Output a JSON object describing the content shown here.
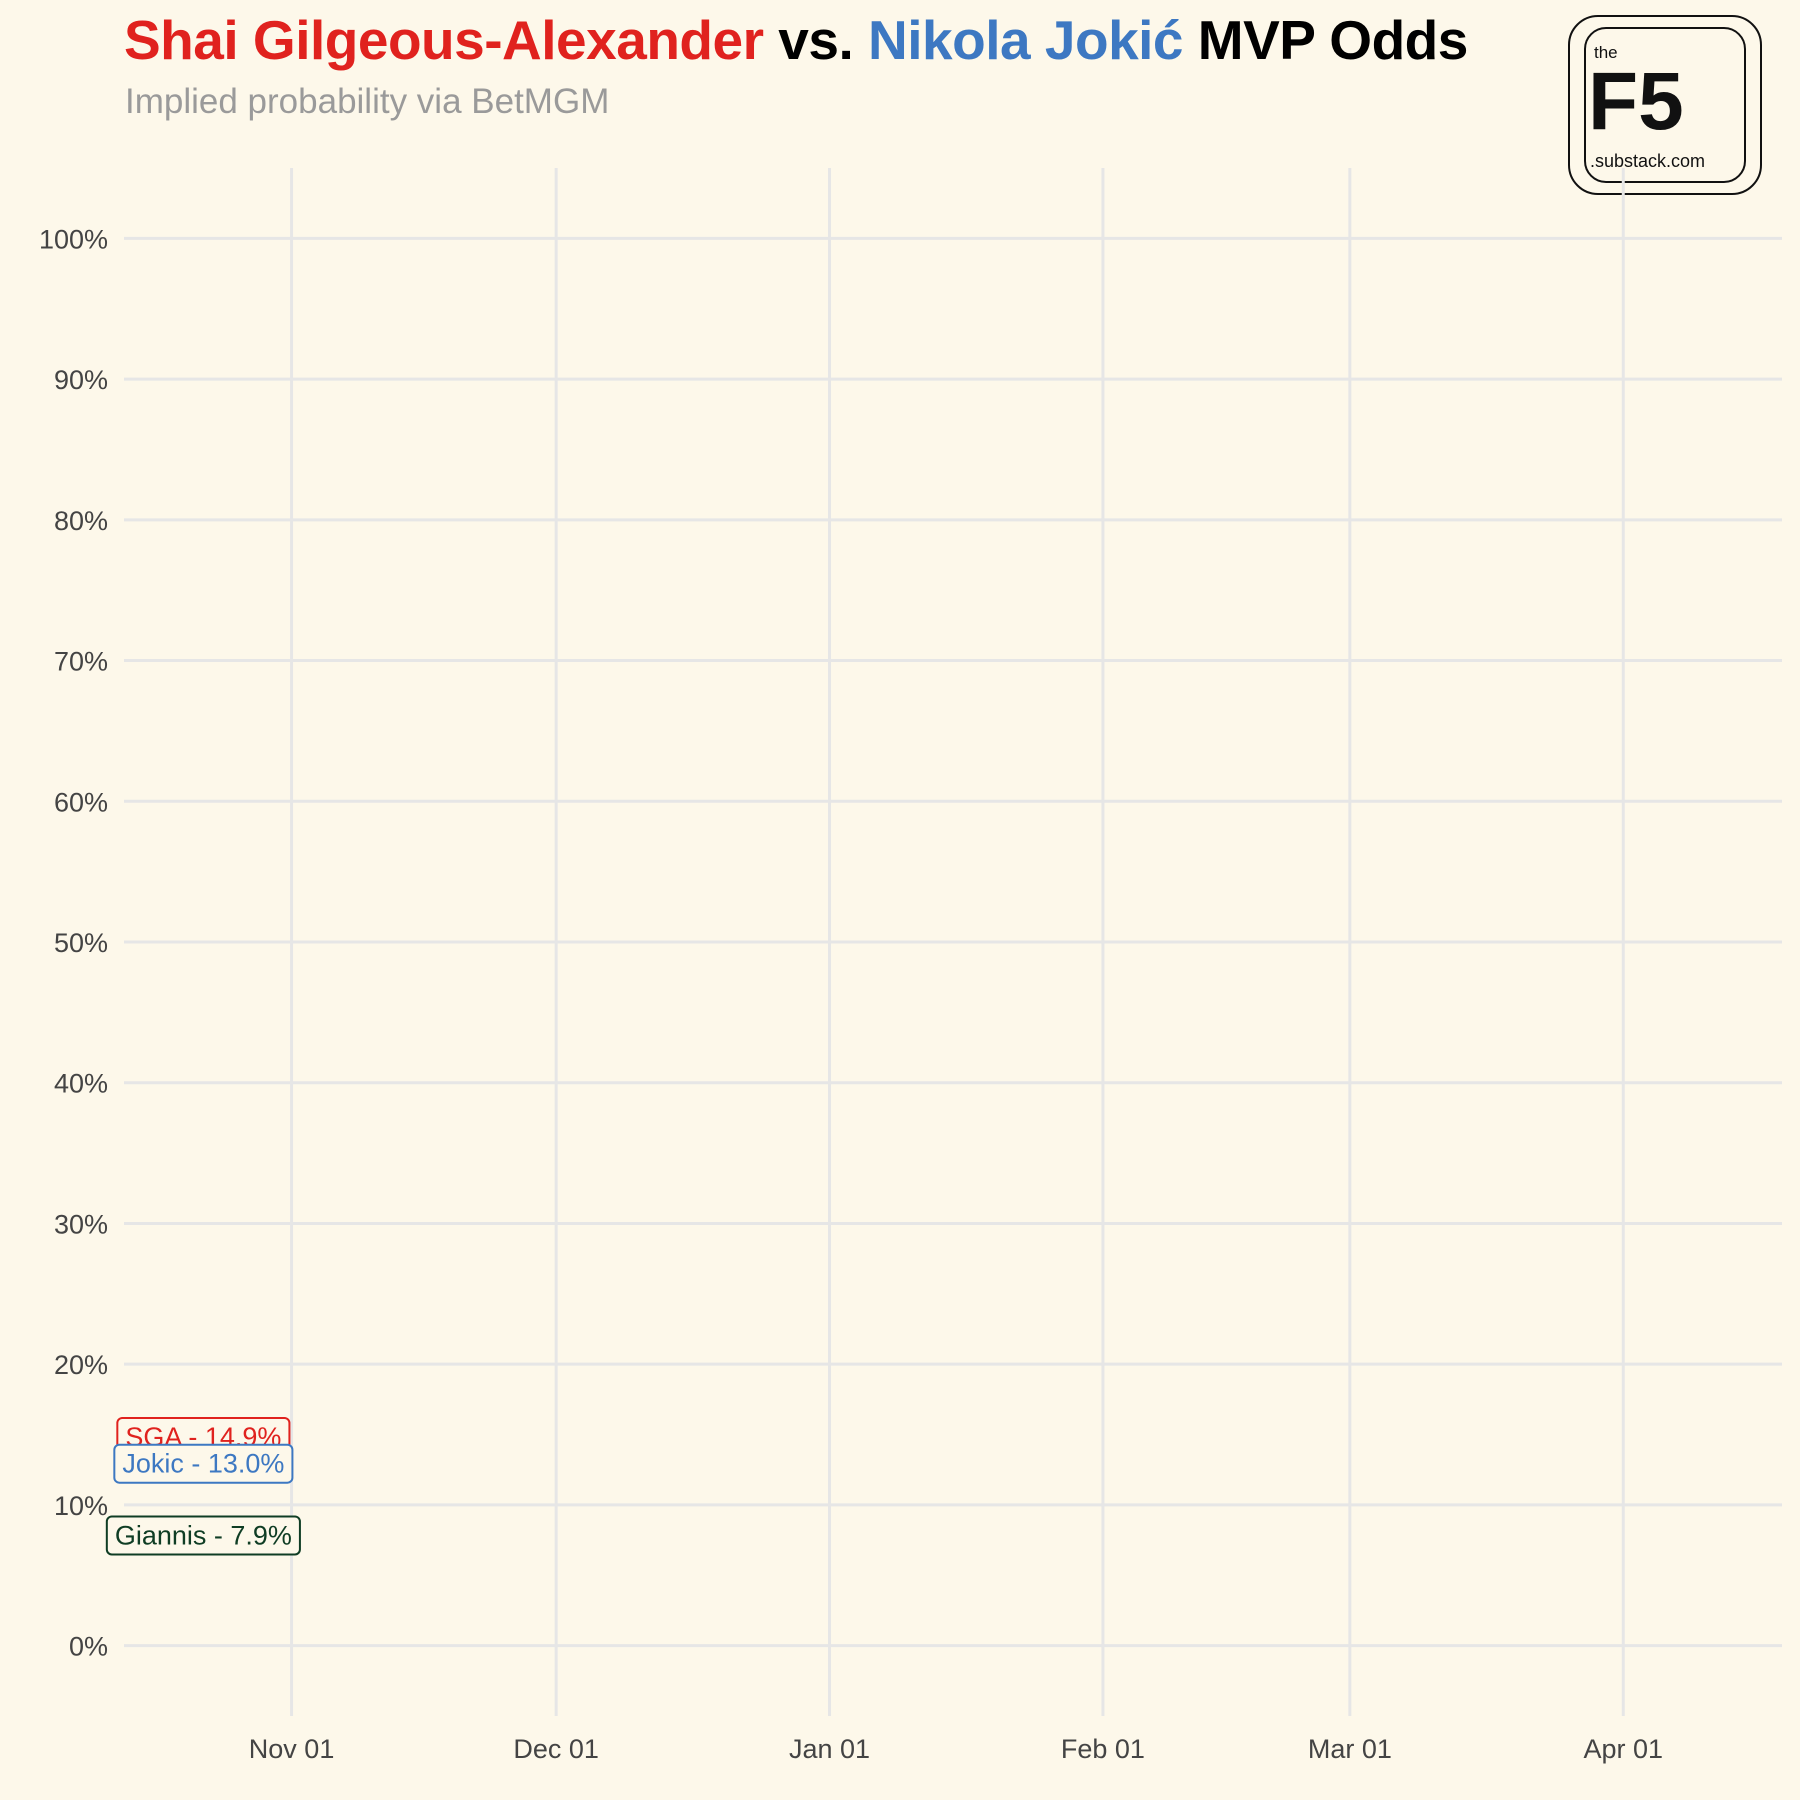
{
  "header": {
    "title_parts": [
      {
        "text": "Shai Gilgeous-Alexander",
        "color": "#e0221e"
      },
      {
        "text": " vs. ",
        "color": "#000000"
      },
      {
        "text": "Nikola Jokić",
        "color": "#3d78c2"
      },
      {
        "text": " MVP Odds",
        "color": "#000000"
      }
    ],
    "subtitle": "Implied probability via BetMGM"
  },
  "logo": {
    "top": "the",
    "main": "F5",
    "bottom": ".substack.com"
  },
  "chart_data": {
    "type": "line",
    "title": "Shai Gilgeous-Alexander vs. Nikola Jokić MVP Odds",
    "subtitle": "Implied probability via BetMGM",
    "xlabel": "",
    "ylabel": "",
    "x_ticks": [
      {
        "date": "2024-11-01",
        "label": "Nov 01"
      },
      {
        "date": "2024-12-01",
        "label": "Dec 01"
      },
      {
        "date": "2025-01-01",
        "label": "Jan 01"
      },
      {
        "date": "2025-02-01",
        "label": "Feb 01"
      },
      {
        "date": "2025-03-01",
        "label": "Mar 01"
      },
      {
        "date": "2025-04-01",
        "label": "Apr 01"
      }
    ],
    "xlim": [
      "2024-10-13",
      "2025-04-19"
    ],
    "y_ticks": [
      0,
      10,
      20,
      30,
      40,
      50,
      60,
      70,
      80,
      90,
      100
    ],
    "y_tick_suffix": "%",
    "ylim": [
      -5,
      105
    ],
    "grid": true,
    "legend": "none",
    "series": [
      {
        "name": "SGA",
        "color": "#e0221e",
        "points": [
          {
            "x": "2024-10-22",
            "y": 14.9
          }
        ],
        "label": "SGA - 14.9%"
      },
      {
        "name": "Jokic",
        "color": "#3d78c2",
        "points": [
          {
            "x": "2024-10-22",
            "y": 13.0
          }
        ],
        "label": "Jokic - 13.0%"
      },
      {
        "name": "Giannis",
        "color": "#0f3d24",
        "points": [
          {
            "x": "2024-10-22",
            "y": 7.9
          }
        ],
        "label": "Giannis - 7.9%"
      }
    ]
  }
}
